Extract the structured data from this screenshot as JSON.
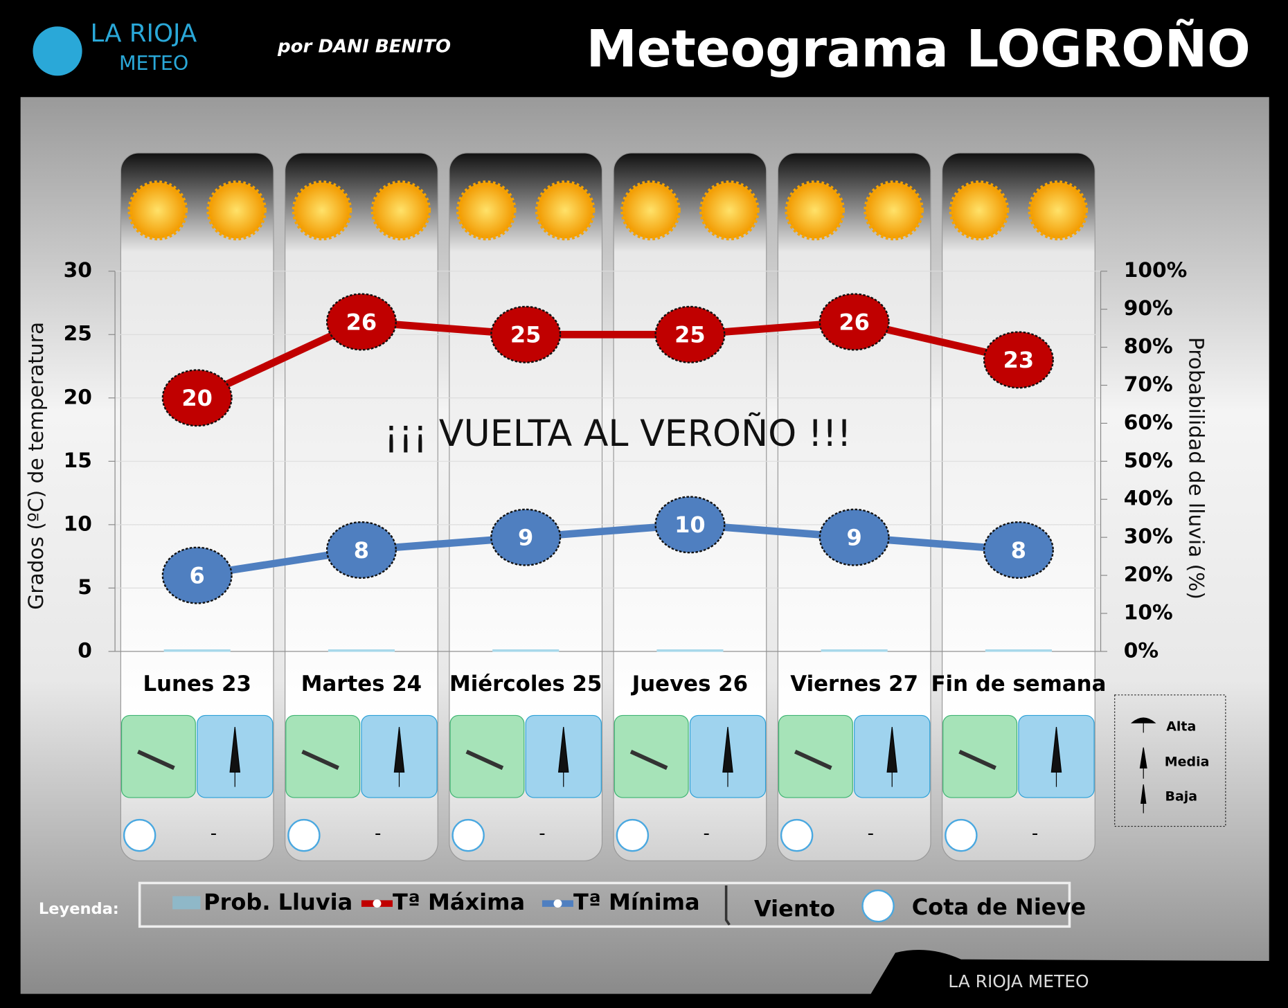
{
  "header": {
    "brand": "LA RIOJA",
    "brand_sub": "METEO",
    "author": "por DANI BENITO"
  },
  "chart_data": {
    "type": "meteogram",
    "title": "Meteograma LOGROÑO",
    "annotation": "¡¡¡ VUELTA AL VEROÑO !!!",
    "y_label": "Grados (ºC) de temperatura",
    "y2_label": "Probabilidad de lluvia (%)",
    "categories": [
      "Lunes 23",
      "Martes 24",
      "Miércoles 25",
      "Jueves 26",
      "Viernes 27",
      "Fin de semana"
    ],
    "series": [
      {
        "name": "Prob. Lluvia",
        "color": "#a8d8ea",
        "axis": "y2",
        "values": [
          0,
          0,
          0,
          0,
          0,
          0
        ]
      },
      {
        "name": "Tª Máxima",
        "color": "#c00000",
        "values": [
          20,
          26,
          25,
          25,
          26,
          23
        ]
      },
      {
        "name": "Tª Mínima",
        "color": "#4f7fc0",
        "values": [
          6,
          8,
          9,
          10,
          9,
          8
        ]
      }
    ],
    "ylim": [
      0,
      30
    ],
    "yticks": [
      0,
      5,
      10,
      15,
      20,
      25,
      30
    ],
    "y2lim": [
      0,
      100
    ],
    "y2ticks": [
      {
        "value": 0,
        "label": "0%"
      },
      {
        "value": 10,
        "label": "10%"
      },
      {
        "value": 20,
        "label": "20%"
      },
      {
        "value": 30,
        "label": "30%"
      },
      {
        "value": 40,
        "label": "40%"
      },
      {
        "value": 50,
        "label": "50%"
      },
      {
        "value": 60,
        "label": "60%"
      },
      {
        "value": 70,
        "label": "70%"
      },
      {
        "value": 80,
        "label": "80%"
      },
      {
        "value": 90,
        "label": "90%"
      },
      {
        "value": 100,
        "label": "100%"
      }
    ],
    "grid": true,
    "snow_level": [
      "-",
      "-",
      "-",
      "-",
      "-",
      "-"
    ],
    "rain_legend": [
      "Alta",
      "Media",
      "Baja"
    ],
    "legend_title": "Leyenda:",
    "legend_extra": [
      "Viento",
      "Cota de Nieve"
    ]
  },
  "footer": {
    "brand": "LA RIOJA METEO"
  }
}
